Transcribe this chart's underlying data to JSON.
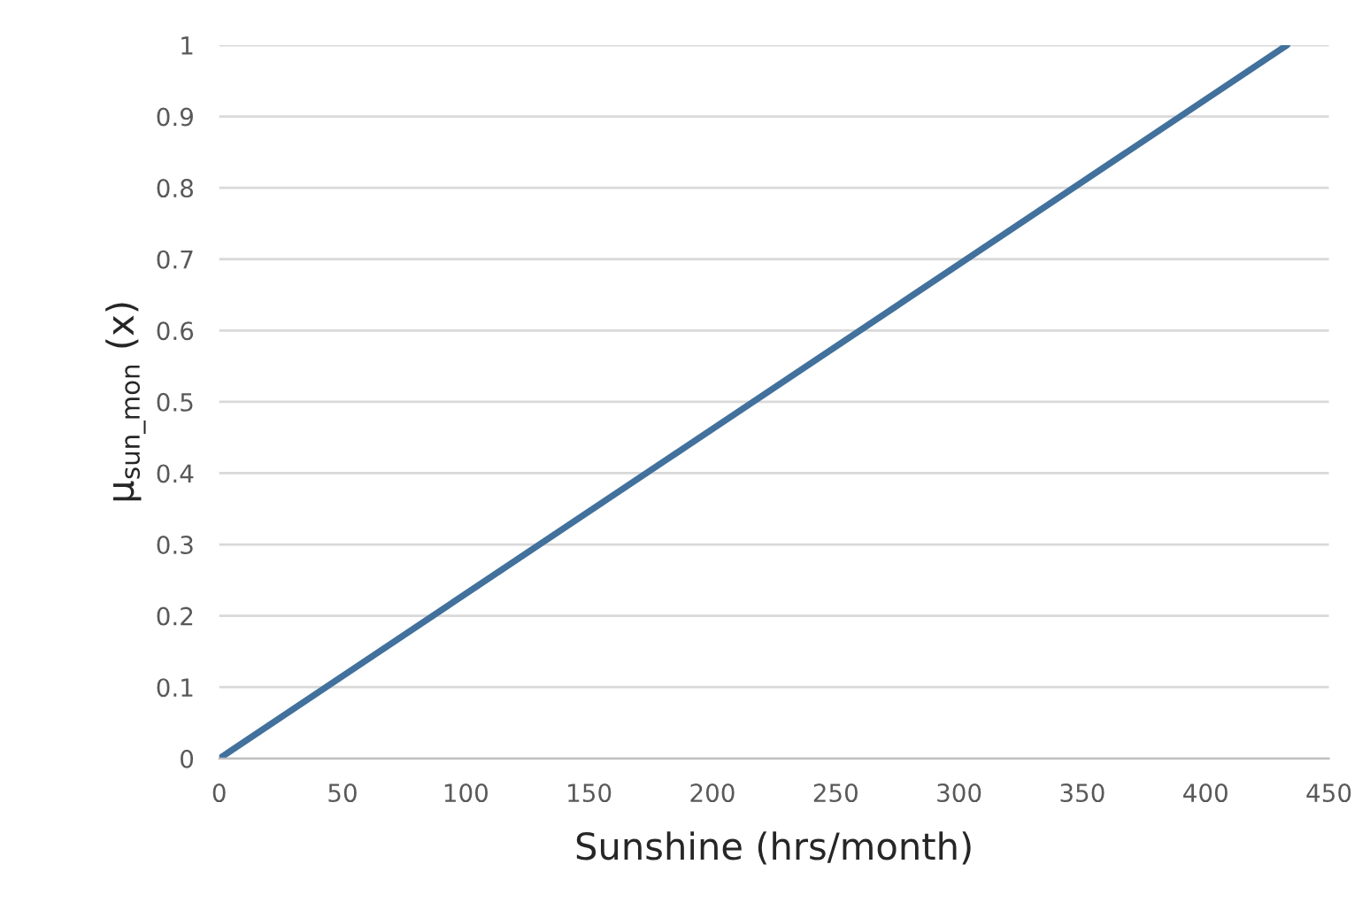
{
  "chart_data": {
    "type": "line",
    "xlabel": "Sunshine (hrs/month)",
    "ylabel": "μ$_{sun_mon}$ (x)",
    "x": [
      0,
      433
    ],
    "series": [
      {
        "color": "#41719c",
        "values": [
          0,
          1
        ]
      }
    ],
    "xlim": [
      0,
      450
    ],
    "xticks": [
      0,
      50,
      100,
      150,
      200,
      250,
      300,
      350,
      400,
      450
    ],
    "ylim": [
      0,
      1
    ],
    "yticks": [
      0,
      0.1,
      0.2,
      0.3,
      0.4,
      0.5,
      0.6,
      0.7,
      0.8,
      0.9,
      1
    ],
    "grid": "y",
    "marker": "none",
    "line_style": "solid"
  }
}
